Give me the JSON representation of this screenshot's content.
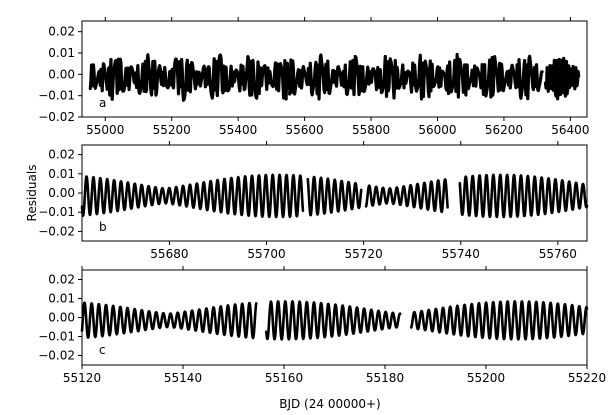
{
  "figure": {
    "xlabel": "BJD (24 00000+)",
    "ylabel": "Residuals"
  },
  "chart_data": [
    {
      "type": "line",
      "panel_label": "a",
      "xlim": [
        54930,
        56450
      ],
      "ylim": [
        -0.02,
        0.025
      ],
      "xticks": [
        55000,
        55200,
        55400,
        55600,
        55800,
        56000,
        56200,
        56400
      ],
      "yticks": [
        -0.02,
        -0.01,
        0.0,
        0.01,
        0.02
      ],
      "ytick_labels": [
        "−0.02",
        "−0.01",
        "0.00",
        "0.01",
        "0.02"
      ],
      "amplitude_envelope": 0.011,
      "segments": [
        [
          54955,
          55550
        ],
        [
          55555,
          56315
        ],
        [
          56325,
          56425
        ]
      ],
      "series": [
        {
          "color": "#000000"
        }
      ]
    },
    {
      "type": "line",
      "panel_label": "b",
      "xlim": [
        55662,
        55766
      ],
      "ylim": [
        -0.025,
        0.025
      ],
      "xticks": [
        55680,
        55700,
        55720,
        55740,
        55760
      ],
      "yticks": [
        -0.02,
        -0.01,
        0.0,
        0.01,
        0.02
      ],
      "ytick_labels": [
        "−0.02",
        "−0.01",
        "0.00",
        "0.01",
        "0.02"
      ],
      "amplitude_envelope": 0.011,
      "segments": [
        [
          55662,
          55707.5
        ],
        [
          55708.5,
          55719.5
        ],
        [
          55720.5,
          55737.3
        ],
        [
          55739.8,
          55766
        ]
      ],
      "series": [
        {
          "color": "#000000"
        }
      ]
    },
    {
      "type": "line",
      "panel_label": "c",
      "xlim": [
        55120,
        55220
      ],
      "ylim": [
        -0.025,
        0.025
      ],
      "xticks": [
        55120,
        55140,
        55160,
        55180,
        55200,
        55220
      ],
      "yticks": [
        -0.02,
        -0.01,
        0.0,
        0.01,
        0.02
      ],
      "ytick_labels": [
        "−0.02",
        "−0.01",
        "0.00",
        "0.01",
        "0.02"
      ],
      "amplitude_envelope": 0.01,
      "segments": [
        [
          55120,
          55154.5
        ],
        [
          55156.5,
          55183
        ],
        [
          55185.2,
          55220
        ]
      ],
      "series": [
        {
          "color": "#000000"
        }
      ]
    }
  ]
}
